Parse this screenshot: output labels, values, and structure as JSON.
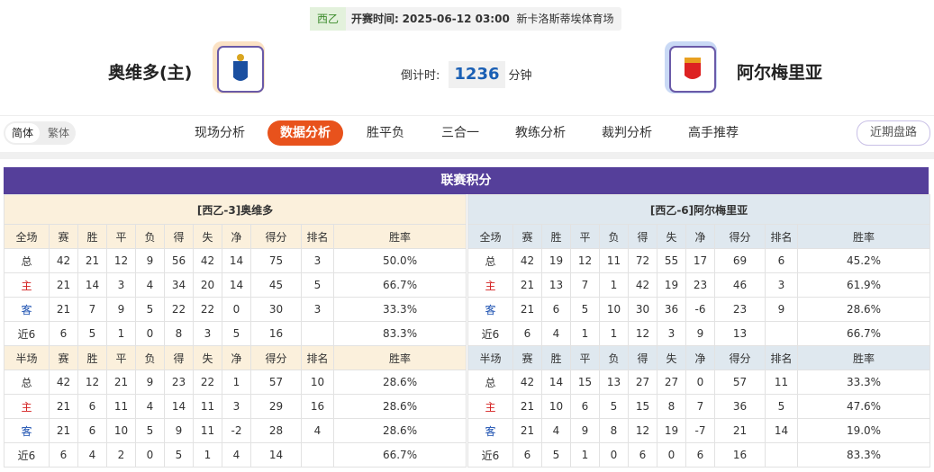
{
  "header": {
    "league": "西乙",
    "kickoff_label": "开赛时间:",
    "kickoff": "2025-06-12 03:00",
    "venue": "新卡洛斯蒂埃体育场",
    "home": "奥维多(主)",
    "away": "阿尔梅里亚",
    "countdown_label": "倒计时:",
    "countdown": "1236",
    "countdown_unit": "分钟"
  },
  "nav": {
    "lang": [
      "简体",
      "繁体"
    ],
    "tabs": [
      "现场分析",
      "数据分析",
      "胜平负",
      "三合一",
      "教练分析",
      "裁判分析",
      "高手推荐"
    ],
    "active": 1,
    "right": "近期盘路"
  },
  "table": {
    "title": "联赛积分",
    "home": {
      "title": "[西乙-3]奥维多",
      "full": {
        "header": [
          "全场",
          "赛",
          "胜",
          "平",
          "负",
          "得",
          "失",
          "净",
          "得分",
          "排名",
          "胜率"
        ],
        "rows": [
          [
            "总",
            42,
            21,
            12,
            9,
            56,
            42,
            14,
            75,
            3,
            "50.0%"
          ],
          [
            "主",
            21,
            14,
            3,
            4,
            34,
            20,
            14,
            45,
            5,
            "66.7%"
          ],
          [
            "客",
            21,
            7,
            9,
            5,
            22,
            22,
            0,
            30,
            3,
            "33.3%"
          ],
          [
            "近6",
            6,
            5,
            1,
            0,
            8,
            3,
            5,
            16,
            null,
            "83.3%"
          ]
        ]
      },
      "half": {
        "header": [
          "半场",
          "赛",
          "胜",
          "平",
          "负",
          "得",
          "失",
          "净",
          "得分",
          "排名",
          "胜率"
        ],
        "rows": [
          [
            "总",
            42,
            12,
            21,
            9,
            23,
            22,
            1,
            57,
            10,
            "28.6%"
          ],
          [
            "主",
            21,
            6,
            11,
            4,
            14,
            11,
            3,
            29,
            16,
            "28.6%"
          ],
          [
            "客",
            21,
            6,
            10,
            5,
            9,
            11,
            -2,
            28,
            4,
            "28.6%"
          ],
          [
            "近6",
            6,
            4,
            2,
            0,
            5,
            1,
            4,
            14,
            null,
            "66.7%"
          ]
        ]
      }
    },
    "away": {
      "title": "[西乙-6]阿尔梅里亚",
      "full": {
        "header": [
          "全场",
          "赛",
          "胜",
          "平",
          "负",
          "得",
          "失",
          "净",
          "得分",
          "排名",
          "胜率"
        ],
        "rows": [
          [
            "总",
            42,
            19,
            12,
            11,
            72,
            55,
            17,
            69,
            6,
            "45.2%"
          ],
          [
            "主",
            21,
            13,
            7,
            1,
            42,
            19,
            23,
            46,
            3,
            "61.9%"
          ],
          [
            "客",
            21,
            6,
            5,
            10,
            30,
            36,
            -6,
            23,
            9,
            "28.6%"
          ],
          [
            "近6",
            6,
            4,
            1,
            1,
            12,
            3,
            9,
            13,
            null,
            "66.7%"
          ]
        ]
      },
      "half": {
        "header": [
          "半场",
          "赛",
          "胜",
          "平",
          "负",
          "得",
          "失",
          "净",
          "得分",
          "排名",
          "胜率"
        ],
        "rows": [
          [
            "总",
            42,
            14,
            15,
            13,
            27,
            27,
            0,
            57,
            11,
            "33.3%"
          ],
          [
            "主",
            21,
            10,
            6,
            5,
            15,
            8,
            7,
            36,
            5,
            "47.6%"
          ],
          [
            "客",
            21,
            4,
            9,
            8,
            12,
            19,
            -7,
            21,
            14,
            "19.0%"
          ],
          [
            "近6",
            6,
            5,
            1,
            0,
            6,
            0,
            6,
            16,
            null,
            "83.3%"
          ]
        ]
      }
    }
  }
}
